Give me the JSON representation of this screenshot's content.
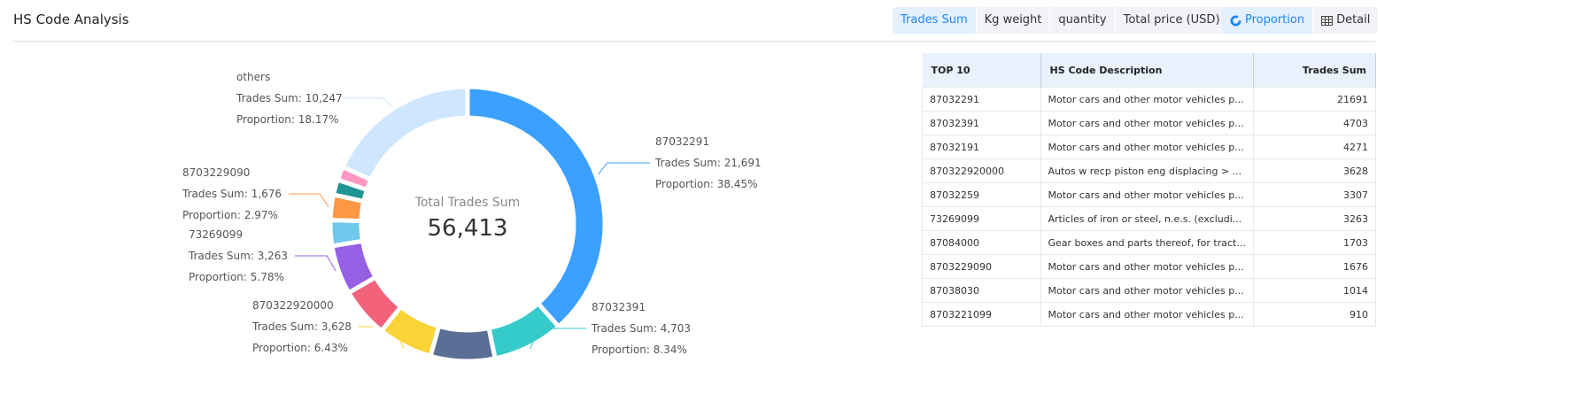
{
  "header": {
    "title": "HS Code Analysis",
    "metric_tabs": [
      "Trades Sum",
      "Kg weight",
      "quantity",
      "Total price (USD)"
    ],
    "active_metric": 0,
    "view_tabs": [
      {
        "label": "Proportion",
        "icon": "donut-icon"
      },
      {
        "label": "Detail",
        "icon": "table-icon"
      }
    ],
    "active_view": 0
  },
  "chart_data": {
    "type": "pie",
    "donut": true,
    "center_label": "Total Trades Sum",
    "center_value": "56,413",
    "slices": [
      {
        "name": "87032291",
        "value": 21691,
        "proportion": "38.45%",
        "color": "#3ba0ff",
        "label": true
      },
      {
        "name": "87032391",
        "value": 4703,
        "proportion": "8.34%",
        "color": "#36cbcb",
        "label": true
      },
      {
        "name": "87032191",
        "value": 4271,
        "color": "#5b6e96",
        "label": false
      },
      {
        "name": "870322920000",
        "value": 3628,
        "proportion": "6.43%",
        "color": "#fad337",
        "label": true
      },
      {
        "name": "87032259",
        "value": 3307,
        "color": "#f2637b",
        "label": false
      },
      {
        "name": "73269099",
        "value": 3263,
        "proportion": "5.78%",
        "color": "#975fe4",
        "label": true
      },
      {
        "name": "87084000",
        "value": 1703,
        "color": "#6dc8ec",
        "label": false
      },
      {
        "name": "8703229090",
        "value": 1676,
        "proportion": "2.97%",
        "color": "#ff9845",
        "label": true
      },
      {
        "name": "87038030",
        "value": 1014,
        "color": "#1e9493",
        "label": false
      },
      {
        "name": "8703221099",
        "value": 910,
        "color": "#ff99c3",
        "label": false
      },
      {
        "name": "others",
        "value": 10247,
        "proportion": "18.17%",
        "color": "#cfe6ff",
        "label": true
      }
    ],
    "sum_prefix": "Trades Sum: ",
    "prop_prefix": "Proportion: ",
    "display_values": {
      "87032291": "21,691",
      "87032391": "4,703",
      "870322920000": "3,628",
      "73269099": "3,263",
      "8703229090": "1,676",
      "others": "10,247"
    }
  },
  "table": {
    "columns": [
      "TOP 10",
      "HS Code Description",
      "Trades Sum"
    ],
    "rows": [
      [
        "87032291",
        "Motor cars and other motor vehicles p...",
        "21691"
      ],
      [
        "87032391",
        "Motor cars and other motor vehicles p...",
        "4703"
      ],
      [
        "87032191",
        "Motor cars and other motor vehicles p...",
        "4271"
      ],
      [
        "870322920000",
        "Autos w recp piston eng displacing > ...",
        "3628"
      ],
      [
        "87032259",
        "Motor cars and other motor vehicles p...",
        "3307"
      ],
      [
        "73269099",
        "Articles of iron or steel, n.e.s. (excludi...",
        "3263"
      ],
      [
        "87084000",
        "Gear boxes and parts thereof, for tract...",
        "1703"
      ],
      [
        "8703229090",
        "Motor cars and other motor vehicles p...",
        "1676"
      ],
      [
        "87038030",
        "Motor cars and other motor vehicles p...",
        "1014"
      ],
      [
        "8703221099",
        "Motor cars and other motor vehicles p...",
        "910"
      ]
    ]
  }
}
